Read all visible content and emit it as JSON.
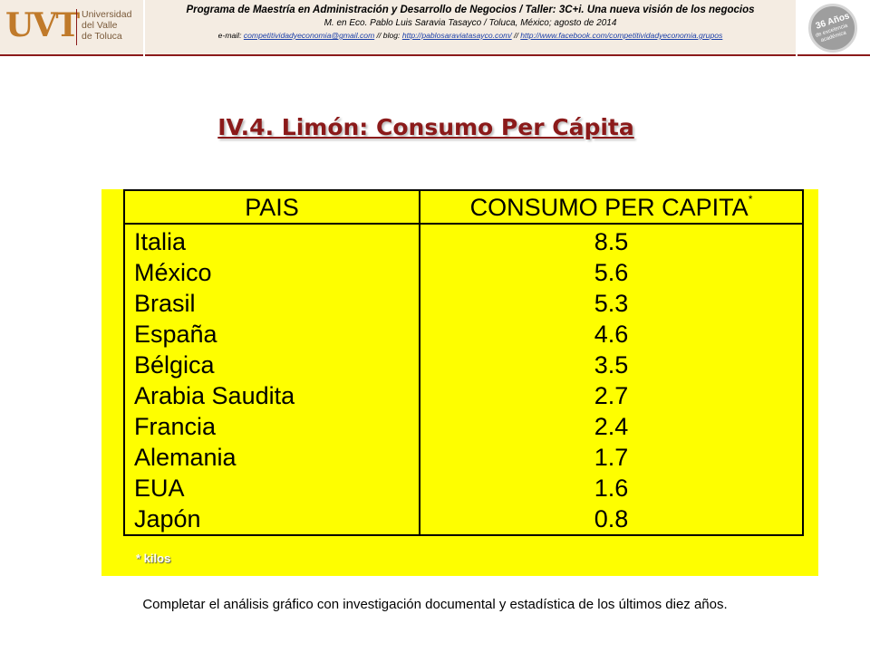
{
  "header": {
    "logo_mark": "UVT",
    "logo_name_lines": [
      "Universidad",
      "del Valle",
      "de Toluca"
    ],
    "line1": "Programa de Maestría en Administración y Desarrollo de Negocios / Taller: 3C+i. Una nueva visión de los negocios",
    "line2": "M. en Eco. Pablo Luis Saravia Tasayco / Toluca, México; agosto de 2014",
    "email_label": "e-mail:",
    "email": "competitividadyeconomia@gmail.com",
    "sep1": "// blog:",
    "blog": "http://pablosaraviatasayco.com/",
    "sep2": "//",
    "facebook": "http://www.facebook.com/competitividadyeconomia.grupos",
    "badge_line1": "36 Años",
    "badge_line2": "de excelencia académica"
  },
  "title": "IV.4. Limón: Consumo Per Cápita",
  "table": {
    "col1_header": "PAIS",
    "col2_header": "CONSUMO PER CAPITA",
    "col2_header_mark": "*",
    "rows": [
      {
        "pais": "Italia",
        "valor": "8.5"
      },
      {
        "pais": "México",
        "valor": "5.6"
      },
      {
        "pais": "Brasil",
        "valor": "5.3"
      },
      {
        "pais": "España",
        "valor": "4.6"
      },
      {
        "pais": "Bélgica",
        "valor": "3.5"
      },
      {
        "pais": "Arabia Saudita",
        "valor": "2.7"
      },
      {
        "pais": "Francia",
        "valor": "2.4"
      },
      {
        "pais": "Alemania",
        "valor": "1.7"
      },
      {
        "pais": "EUA",
        "valor": "1.6"
      },
      {
        "pais": "Japón",
        "valor": "0.8"
      }
    ],
    "note": "* kilos"
  },
  "footer": "Completar el análisis gráfico con investigación documental y estadística de los últimos diez años.",
  "colors": {
    "panel": "#fefe00",
    "title": "#8b1a1a",
    "header_band": "#f4ece2"
  }
}
